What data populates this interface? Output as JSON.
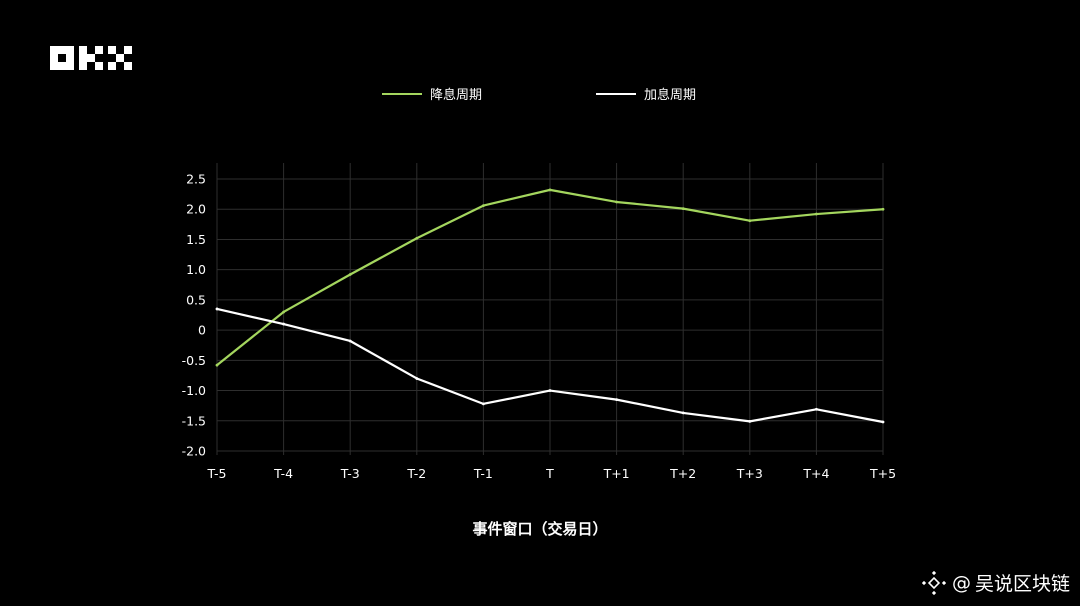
{
  "brand": {
    "logo_text": "OKX",
    "logo_icon": "okx-checker-logo"
  },
  "watermark": {
    "icon": "binance-diamond-icon",
    "at": "@",
    "text": "吴说区块链"
  },
  "colors": {
    "background": "#000000",
    "easing": "#a4d65e",
    "hiking": "#ffffff",
    "grid": "#2e2e2e",
    "text": "#ffffff"
  },
  "chart_data": {
    "type": "line",
    "title": "",
    "xlabel": "事件窗口（交易日）",
    "ylabel": "",
    "categories": [
      "T-5",
      "T-4",
      "T-3",
      "T-2",
      "T-1",
      "T",
      "T+1",
      "T+2",
      "T+3",
      "T+4",
      "T+5"
    ],
    "yticks": [
      "2.5",
      "2.0",
      "1.5",
      "1.0",
      "0.5",
      "0",
      "-0.5",
      "-1.0",
      "-1.5",
      "-2.0"
    ],
    "ylim": [
      -2.0,
      2.5
    ],
    "grid": true,
    "legend_position": "top-center",
    "series": [
      {
        "name": "降息周期",
        "color": "#a4d65e",
        "values": [
          -0.58,
          0.3,
          0.92,
          1.52,
          2.06,
          2.32,
          2.12,
          2.01,
          1.81,
          1.92,
          2.0
        ]
      },
      {
        "name": "加息周期",
        "color": "#ffffff",
        "values": [
          0.35,
          0.1,
          -0.18,
          -0.8,
          -1.22,
          -1.0,
          -1.15,
          -1.37,
          -1.51,
          -1.31,
          -1.52
        ]
      }
    ]
  }
}
